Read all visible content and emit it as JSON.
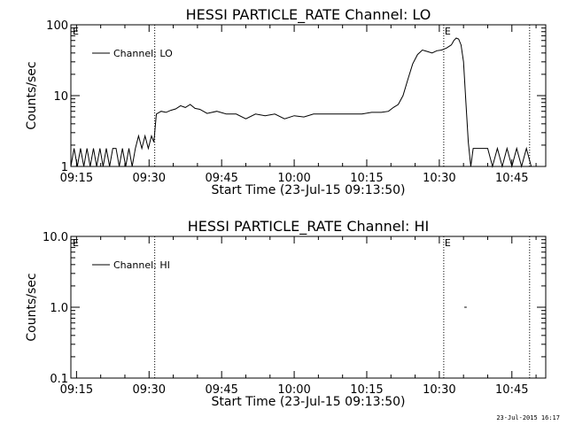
{
  "footer": {
    "stamp": "23-Jul-2015 16:17"
  },
  "chart_data": [
    {
      "type": "line",
      "title": "HESSI PARTICLE_RATE Channel: LO",
      "xlabel": "Start Time (23-Jul-15 09:13:50)",
      "ylabel": "Counts/sec",
      "yscale": "log",
      "ylim": [
        1,
        100
      ],
      "xlim": [
        "09:13:50",
        "10:52:00"
      ],
      "x_ticks": [
        "09:15",
        "09:30",
        "09:45",
        "10:00",
        "10:15",
        "10:30",
        "10:45"
      ],
      "y_ticks": [
        "1",
        "10",
        "100"
      ],
      "legend": {
        "position": "top-left",
        "entries": [
          "Channel: LO"
        ]
      },
      "grid": false,
      "annotations": [
        {
          "type": "vline",
          "style": "dotted",
          "x": "09:31:10"
        },
        {
          "type": "vline",
          "style": "dotted",
          "x": "10:30:55",
          "label": "E"
        },
        {
          "type": "vline",
          "style": "dotted",
          "x": "10:48:40"
        },
        {
          "type": "text",
          "label": "E",
          "x": "09:13:50"
        }
      ],
      "series": [
        {
          "name": "Channel: LO",
          "x": [
            "09:13:50",
            "09:14:30",
            "09:15:10",
            "09:15:50",
            "09:16:30",
            "09:17:10",
            "09:17:50",
            "09:18:30",
            "09:19:10",
            "09:19:50",
            "09:20:30",
            "09:21:10",
            "09:21:50",
            "09:22:30",
            "09:23:10",
            "09:23:50",
            "09:24:30",
            "09:25:10",
            "09:25:50",
            "09:26:30",
            "09:27:10",
            "09:27:50",
            "09:28:30",
            "09:29:10",
            "09:29:50",
            "09:30:30",
            "09:31:00",
            "09:31:30",
            "09:32:30",
            "09:33:30",
            "09:34:30",
            "09:35:30",
            "09:36:30",
            "09:37:30",
            "09:38:30",
            "09:39:30",
            "09:40:30",
            "09:42:00",
            "09:44:00",
            "09:46:00",
            "09:48:00",
            "09:50:00",
            "09:52:00",
            "09:54:00",
            "09:56:00",
            "09:58:00",
            "10:00:00",
            "10:02:00",
            "10:04:00",
            "10:06:00",
            "10:08:00",
            "10:10:00",
            "10:12:00",
            "10:14:00",
            "10:16:00",
            "10:18:00",
            "10:19:30",
            "10:20:30",
            "10:21:30",
            "10:22:30",
            "10:23:30",
            "10:24:30",
            "10:25:30",
            "10:26:30",
            "10:27:30",
            "10:28:30",
            "10:29:30",
            "10:30:30",
            "10:31:30",
            "10:32:30",
            "10:33:00",
            "10:33:30",
            "10:34:00",
            "10:34:30",
            "10:35:00",
            "10:35:30",
            "10:36:00",
            "10:36:30",
            "10:37:00",
            "10:38:00",
            "10:39:00",
            "10:40:00",
            "10:41:00",
            "10:42:00",
            "10:43:00",
            "10:44:00",
            "10:45:00",
            "10:46:00",
            "10:47:00",
            "10:48:00",
            "10:49:00"
          ],
          "y": [
            1,
            1.8,
            1,
            1.8,
            1,
            1.8,
            1,
            1.8,
            1,
            1.8,
            1,
            1.8,
            1,
            1.8,
            1.8,
            1,
            1.8,
            1,
            1.8,
            1,
            1.8,
            2.7,
            1.8,
            2.7,
            1.8,
            2.7,
            2.2,
            5.5,
            6,
            5.8,
            6.2,
            6.5,
            7.2,
            6.8,
            7.5,
            6.6,
            6.4,
            5.6,
            6,
            5.5,
            5.5,
            4.7,
            5.5,
            5.2,
            5.5,
            4.7,
            5.2,
            5,
            5.5,
            5.5,
            5.5,
            5.5,
            5.5,
            5.5,
            5.8,
            5.8,
            6,
            6.8,
            7.5,
            10,
            17,
            28,
            38,
            44,
            42,
            40,
            43,
            44,
            47,
            52,
            60,
            65,
            63,
            52,
            30,
            8,
            2.2,
            1,
            1.8,
            1.8,
            1.8,
            1.8,
            1,
            1.8,
            1,
            1.8,
            1,
            1.8,
            1,
            1.8,
            1
          ]
        }
      ]
    },
    {
      "type": "line",
      "title": "HESSI PARTICLE_RATE Channel: HI",
      "xlabel": "Start Time (23-Jul-15 09:13:50)",
      "ylabel": "Counts/sec",
      "yscale": "log",
      "ylim": [
        0.1,
        10
      ],
      "xlim": [
        "09:13:50",
        "10:52:00"
      ],
      "x_ticks": [
        "09:15",
        "09:30",
        "09:45",
        "10:00",
        "10:15",
        "10:30",
        "10:45"
      ],
      "y_ticks": [
        "0.1",
        "1.0",
        "10.0"
      ],
      "legend": {
        "position": "top-left",
        "entries": [
          "Channel: HI"
        ]
      },
      "grid": false,
      "annotations": [
        {
          "type": "vline",
          "style": "dotted",
          "x": "09:31:10"
        },
        {
          "type": "vline",
          "style": "dotted",
          "x": "10:30:55",
          "label": "E"
        },
        {
          "type": "vline",
          "style": "dotted",
          "x": "10:48:40"
        },
        {
          "type": "text",
          "label": "E",
          "x": "09:13:50"
        }
      ],
      "series": [
        {
          "name": "Channel: HI",
          "x": [
            "10:35:10",
            "10:35:40"
          ],
          "y": [
            1.0,
            1.0
          ]
        }
      ]
    }
  ]
}
